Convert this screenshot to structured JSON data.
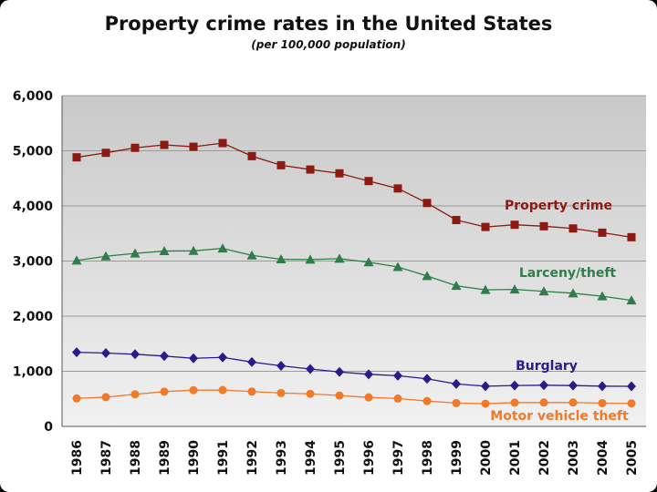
{
  "title": "Property crime rates in the United States",
  "subtitle": "(per 100,000 population)",
  "chart_data": {
    "type": "line",
    "title": "Property crime rates in the United States",
    "subtitle": "(per 100,000 population)",
    "xlabel": "",
    "ylabel": "",
    "ylim": [
      0,
      6000
    ],
    "yticks": [
      0,
      1000,
      2000,
      3000,
      4000,
      5000,
      6000
    ],
    "ytick_labels": [
      "0",
      "1,000",
      "2,000",
      "3,000",
      "4,000",
      "5,000",
      "6,000"
    ],
    "grid": true,
    "categories": [
      "1986",
      "1987",
      "1988",
      "1989",
      "1990",
      "1991",
      "1992",
      "1993",
      "1994",
      "1995",
      "1996",
      "1997",
      "1998",
      "1999",
      "2000",
      "2001",
      "2002",
      "2003",
      "2004",
      "2005"
    ],
    "series": [
      {
        "name": "Property crime",
        "color": "#8b1a12",
        "marker": "square",
        "values": [
          4881,
          4963,
          5054,
          5107,
          5073,
          5140,
          4903,
          4738,
          4660,
          4591,
          4451,
          4317,
          4053,
          3744,
          3618,
          3658,
          3631,
          3591,
          3514,
          3432
        ]
      },
      {
        "name": "Larceny/theft",
        "color": "#2e7d4a",
        "marker": "triangle",
        "values": [
          3011,
          3087,
          3139,
          3181,
          3185,
          3229,
          3103,
          3033,
          3027,
          3043,
          2980,
          2892,
          2730,
          2551,
          2477,
          2486,
          2451,
          2416,
          2362,
          2287
        ]
      },
      {
        "name": "Burglary",
        "color": "#2b1a8c",
        "marker": "diamond",
        "values": [
          1345,
          1330,
          1309,
          1276,
          1236,
          1252,
          1168,
          1099,
          1042,
          987,
          945,
          919,
          863,
          770,
          729,
          742,
          747,
          741,
          730,
          727
        ]
      },
      {
        "name": "Motor vehicle theft",
        "color": "#f07a2a",
        "marker": "circle",
        "values": [
          508,
          530,
          583,
          631,
          658,
          659,
          632,
          606,
          591,
          560,
          526,
          506,
          460,
          423,
          412,
          431,
          433,
          434,
          422,
          417
        ]
      }
    ]
  }
}
